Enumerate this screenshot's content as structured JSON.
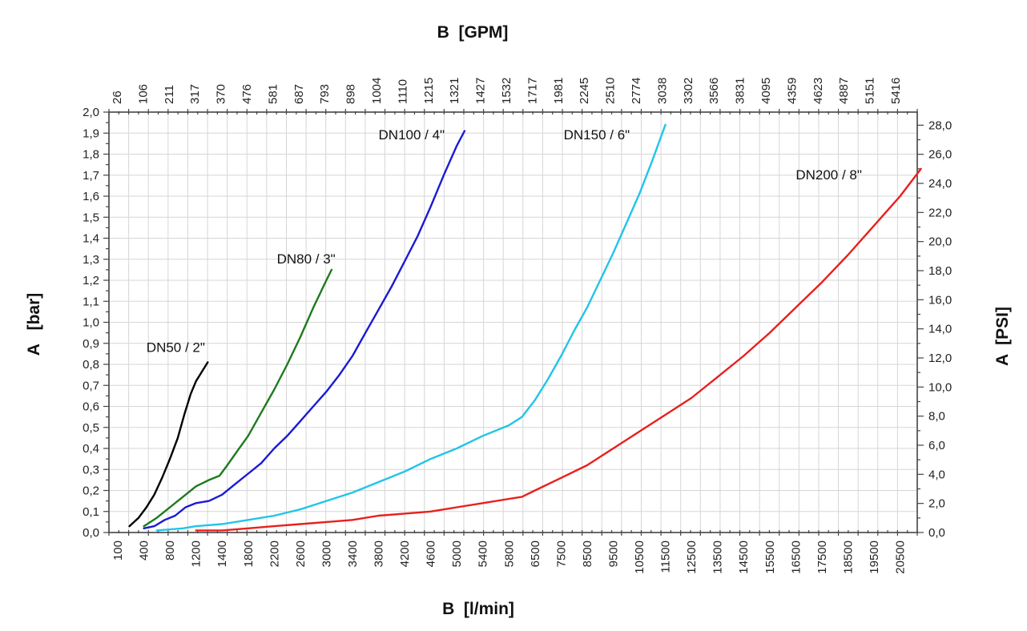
{
  "chart_data": {
    "type": "line",
    "title": "",
    "x_bottom": {
      "label": "B  [l/min]",
      "scale": "categorical",
      "tick_labels": [
        "100",
        "400",
        "800",
        "1200",
        "1400",
        "1800",
        "2200",
        "2600",
        "3000",
        "3400",
        "3800",
        "4200",
        "4600",
        "5000",
        "5400",
        "5800",
        "6500",
        "7500",
        "8500",
        "9500",
        "10500",
        "11500",
        "12500",
        "13500",
        "14500",
        "15500",
        "16500",
        "17500",
        "18500",
        "19500",
        "20500"
      ]
    },
    "x_top": {
      "label": "B  [GPM]",
      "scale": "categorical",
      "tick_labels": [
        "26",
        "106",
        "211",
        "317",
        "370",
        "476",
        "581",
        "687",
        "793",
        "898",
        "1004",
        "1110",
        "1215",
        "1321",
        "1427",
        "1532",
        "1717",
        "1981",
        "2245",
        "2510",
        "2774",
        "3038",
        "3302",
        "3566",
        "3831",
        "4095",
        "4359",
        "4623",
        "4887",
        "5151",
        "5416"
      ]
    },
    "y_left": {
      "label": "A   [bar]",
      "range": [
        0,
        2.0
      ],
      "tick_labels": [
        "0,0",
        "0,1",
        "0,2",
        "0,3",
        "0,4",
        "0,5",
        "0,6",
        "0,7",
        "0,8",
        "0,9",
        "1,0",
        "1,1",
        "1,2",
        "1,3",
        "1,4",
        "1,5",
        "1,6",
        "1,7",
        "1,8",
        "1,9",
        "2,0"
      ]
    },
    "y_right": {
      "label": "A  [PSI]",
      "range": [
        0,
        29
      ],
      "tick_labels": [
        "0,0",
        "2,0",
        "4,0",
        "6,0",
        "8,0",
        "10,0",
        "12,0",
        "14,0",
        "16,0",
        "18,0",
        "20,0",
        "22,0",
        "24,0",
        "26,0",
        "28,0"
      ]
    },
    "grid": true,
    "x_units_note": "x values are positions on the bottom axis in label-index units (0 = '100 l/min', 30 = '20500 l/min')",
    "series": [
      {
        "name": "DN50 / 2\"",
        "color": "#000000",
        "points": [
          [
            0.45,
            0.03
          ],
          [
            0.8,
            0.07
          ],
          [
            1.1,
            0.12
          ],
          [
            1.4,
            0.18
          ],
          [
            1.7,
            0.26
          ],
          [
            2.0,
            0.35
          ],
          [
            2.3,
            0.45
          ],
          [
            2.55,
            0.56
          ],
          [
            2.8,
            0.66
          ],
          [
            3.0,
            0.72
          ],
          [
            3.2,
            0.76
          ],
          [
            3.45,
            0.81
          ]
        ]
      },
      {
        "name": "DN80 / 3\"",
        "color": "#1e7a1e",
        "points": [
          [
            1.0,
            0.03
          ],
          [
            1.5,
            0.07
          ],
          [
            2.0,
            0.12
          ],
          [
            2.5,
            0.17
          ],
          [
            3.0,
            0.22
          ],
          [
            3.5,
            0.25
          ],
          [
            3.9,
            0.27
          ],
          [
            4.2,
            0.32
          ],
          [
            4.6,
            0.39
          ],
          [
            5.0,
            0.46
          ],
          [
            5.5,
            0.57
          ],
          [
            6.0,
            0.68
          ],
          [
            6.5,
            0.8
          ],
          [
            7.0,
            0.93
          ],
          [
            7.5,
            1.07
          ],
          [
            8.0,
            1.2
          ],
          [
            8.2,
            1.25
          ]
        ]
      },
      {
        "name": "DN100 / 4\"",
        "color": "#1a1ad6",
        "points": [
          [
            1.0,
            0.02
          ],
          [
            1.4,
            0.03
          ],
          [
            1.8,
            0.06
          ],
          [
            2.2,
            0.08
          ],
          [
            2.6,
            0.12
          ],
          [
            3.0,
            0.14
          ],
          [
            3.5,
            0.15
          ],
          [
            4.0,
            0.18
          ],
          [
            4.5,
            0.23
          ],
          [
            5.0,
            0.28
          ],
          [
            5.5,
            0.33
          ],
          [
            6.0,
            0.4
          ],
          [
            6.5,
            0.46
          ],
          [
            7.0,
            0.53
          ],
          [
            7.5,
            0.6
          ],
          [
            8.0,
            0.67
          ],
          [
            8.5,
            0.75
          ],
          [
            9.0,
            0.84
          ],
          [
            9.5,
            0.95
          ],
          [
            10.0,
            1.06
          ],
          [
            10.5,
            1.17
          ],
          [
            11.0,
            1.29
          ],
          [
            11.5,
            1.41
          ],
          [
            12.0,
            1.55
          ],
          [
            12.5,
            1.7
          ],
          [
            13.0,
            1.84
          ],
          [
            13.3,
            1.91
          ]
        ]
      },
      {
        "name": "DN150 / 6\"",
        "color": "#22c4e8",
        "points": [
          [
            1.5,
            0.01
          ],
          [
            2.5,
            0.02
          ],
          [
            3.0,
            0.03
          ],
          [
            4.0,
            0.04
          ],
          [
            5.0,
            0.06
          ],
          [
            6.0,
            0.08
          ],
          [
            7.0,
            0.11
          ],
          [
            8.0,
            0.15
          ],
          [
            9.0,
            0.19
          ],
          [
            10.0,
            0.24
          ],
          [
            11.0,
            0.29
          ],
          [
            12.0,
            0.35
          ],
          [
            13.0,
            0.4
          ],
          [
            14.0,
            0.46
          ],
          [
            15.0,
            0.51
          ],
          [
            15.5,
            0.55
          ],
          [
            16.0,
            0.63
          ],
          [
            16.5,
            0.73
          ],
          [
            17.0,
            0.84
          ],
          [
            17.5,
            0.96
          ],
          [
            18.0,
            1.07
          ],
          [
            18.5,
            1.2
          ],
          [
            19.0,
            1.33
          ],
          [
            19.5,
            1.47
          ],
          [
            20.0,
            1.61
          ],
          [
            20.5,
            1.77
          ],
          [
            21.0,
            1.94
          ]
        ]
      },
      {
        "name": "DN200 / 8\"",
        "color": "#e8201c",
        "points": [
          [
            3.0,
            0.01
          ],
          [
            4.0,
            0.01
          ],
          [
            5.0,
            0.02
          ],
          [
            6.0,
            0.03
          ],
          [
            7.0,
            0.04
          ],
          [
            8.0,
            0.05
          ],
          [
            9.0,
            0.06
          ],
          [
            10.0,
            0.08
          ],
          [
            11.0,
            0.09
          ],
          [
            12.0,
            0.1
          ],
          [
            13.0,
            0.12
          ],
          [
            14.0,
            0.14
          ],
          [
            15.0,
            0.16
          ],
          [
            15.5,
            0.17
          ],
          [
            16.0,
            0.2
          ],
          [
            17.0,
            0.26
          ],
          [
            18.0,
            0.32
          ],
          [
            19.0,
            0.4
          ],
          [
            20.0,
            0.48
          ],
          [
            21.0,
            0.56
          ],
          [
            22.0,
            0.64
          ],
          [
            23.0,
            0.74
          ],
          [
            24.0,
            0.84
          ],
          [
            25.0,
            0.95
          ],
          [
            26.0,
            1.07
          ],
          [
            27.0,
            1.19
          ],
          [
            28.0,
            1.32
          ],
          [
            29.0,
            1.46
          ],
          [
            30.0,
            1.6
          ],
          [
            30.8,
            1.73
          ]
        ]
      }
    ],
    "annotations": [
      {
        "text": "DN50 / 2\"",
        "series": 0,
        "at": [
          1.1,
          0.86
        ]
      },
      {
        "text": "DN80 / 3\"",
        "series": 1,
        "at": [
          6.1,
          1.28
        ]
      },
      {
        "text": "DN100 / 4\"",
        "series": 2,
        "at": [
          10.0,
          1.87
        ]
      },
      {
        "text": "DN150 / 6\"",
        "series": 3,
        "at": [
          17.1,
          1.87
        ]
      },
      {
        "text": "DN200 / 8\"",
        "series": 4,
        "at": [
          26.0,
          1.68
        ]
      }
    ]
  }
}
